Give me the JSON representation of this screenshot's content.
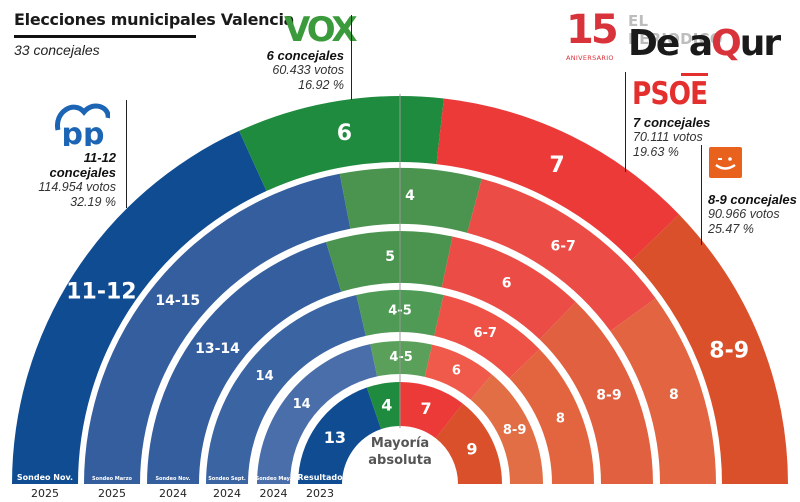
{
  "header": {
    "title": "Elecciones municipales Valencia",
    "subtitle": "33 concejales"
  },
  "brand": {
    "anniversary_number": "15",
    "anniversary_label": "ANIVERSARIO",
    "line1": "EL PERIODICO",
    "line2_a": "De a",
    "line2_q": "Q",
    "line2_b": "ur"
  },
  "parties": {
    "pp": {
      "logo": "PP",
      "seats": "11-12 concejales",
      "votes": "114.954 votos",
      "pct": "32.19 %",
      "color": "#0f4c92"
    },
    "vox": {
      "logo": "VOX",
      "seats": "6 concejales",
      "votes": "60.433 votos",
      "pct": "16.92 %",
      "color": "#1f8b3f"
    },
    "psoe": {
      "logo": "PSOE",
      "seats": "7 concejales",
      "votes": "70.111 votos",
      "pct": "19.63 %",
      "color": "#e8373a"
    },
    "compromis": {
      "logo": "compromis-smile-icon",
      "seats": "8-9 concejales",
      "votes": "90.966 votos",
      "pct": "25.47 %",
      "color": "#e05428"
    }
  },
  "majority": {
    "line1": "Mayoría",
    "line2": "absoluta"
  },
  "chart_data": {
    "type": "hemicycle",
    "title": "Elecciones municipales Valencia",
    "subtitle": "33 concejales",
    "total_seats": 33,
    "majority_line": "Mayoría absoluta",
    "parties": [
      "PP",
      "VOX",
      "PSOE",
      "Compromís"
    ],
    "rings": [
      {
        "name": "Sondeo Nov.",
        "year": "2025",
        "r_in": 322,
        "r_out": 388,
        "font": 22,
        "segments": [
          {
            "party": "PP",
            "label": "11-12",
            "seats_low": 11,
            "seats_high": 12,
            "a0": 0,
            "a1": 65.5,
            "color": "#0f4c92"
          },
          {
            "party": "VOX",
            "label": "6",
            "seats_low": 6,
            "seats_high": 6,
            "a0": 65.5,
            "a1": 96.5,
            "color": "#1f8b3f"
          },
          {
            "party": "PSOE",
            "label": "7",
            "seats_low": 7,
            "seats_high": 7,
            "a0": 96.5,
            "a1": 136,
            "color": "#ec3a38"
          },
          {
            "party": "Compromís",
            "label": "8-9",
            "seats_low": 8,
            "seats_high": 9,
            "a0": 136,
            "a1": 180,
            "color": "#d9502b"
          }
        ]
      },
      {
        "name": "Sondeo Marzo",
        "year": "2025",
        "r_in": 260,
        "r_out": 316,
        "font": 14,
        "segments": [
          {
            "party": "PP",
            "label": "14-15",
            "seats_low": 14,
            "seats_high": 15,
            "a0": 0,
            "a1": 79,
            "color": "#345e9e"
          },
          {
            "party": "VOX",
            "label": "4",
            "seats_low": 4,
            "seats_high": 4,
            "a0": 79,
            "a1": 105,
            "color": "#4b9450"
          },
          {
            "party": "PSOE",
            "label": "6-7",
            "seats_low": 6,
            "seats_high": 7,
            "a0": 105,
            "a1": 144,
            "color": "#ec4c46"
          },
          {
            "party": "Compromís",
            "label": "8",
            "seats_low": 8,
            "seats_high": 8,
            "a0": 144,
            "a1": 180,
            "color": "#e26440"
          }
        ]
      },
      {
        "name": "Sondeo Nov.",
        "year": "2024",
        "r_in": 201,
        "r_out": 253,
        "font": 14,
        "segments": [
          {
            "party": "PP",
            "label": "13-14",
            "seats_low": 13,
            "seats_high": 14,
            "a0": 0,
            "a1": 73,
            "color": "#345e9e"
          },
          {
            "party": "VOX",
            "label": "5",
            "seats_low": 5,
            "seats_high": 5,
            "a0": 73,
            "a1": 102,
            "color": "#4b9450"
          },
          {
            "party": "PSOE",
            "label": "6",
            "seats_low": 6,
            "seats_high": 6,
            "a0": 102,
            "a1": 134,
            "color": "#ec4c46"
          },
          {
            "party": "Compromís",
            "label": "8-9",
            "seats_low": 8,
            "seats_high": 9,
            "a0": 134,
            "a1": 180,
            "color": "#e0603f"
          }
        ]
      },
      {
        "name": "Sondeo Sept.",
        "year": "2024",
        "r_in": 152,
        "r_out": 194,
        "font": 13,
        "segments": [
          {
            "party": "PP",
            "label": "14",
            "seats_low": 14,
            "seats_high": 14,
            "a0": 0,
            "a1": 77,
            "color": "#3a64a2"
          },
          {
            "party": "VOX",
            "label": "4-5",
            "seats_low": 4,
            "seats_high": 5,
            "a0": 77,
            "a1": 103,
            "color": "#4f9a55"
          },
          {
            "party": "PSOE",
            "label": "6-7",
            "seats_low": 6,
            "seats_high": 7,
            "a0": 103,
            "a1": 136,
            "color": "#ee5247"
          },
          {
            "party": "Compromís",
            "label": "8",
            "seats_low": 8,
            "seats_high": 8,
            "a0": 136,
            "a1": 180,
            "color": "#e2653f"
          }
        ]
      },
      {
        "name": "Sondeo May.",
        "year": "2024",
        "r_in": 110,
        "r_out": 143,
        "font": 13,
        "segments": [
          {
            "party": "PP",
            "label": "14",
            "seats_low": 14,
            "seats_high": 14,
            "a0": 0,
            "a1": 78,
            "color": "#4a6eaa"
          },
          {
            "party": "VOX",
            "label": "4-5",
            "seats_low": 4,
            "seats_high": 5,
            "a0": 78,
            "a1": 103,
            "color": "#5aa05a"
          },
          {
            "party": "PSOE",
            "label": "6",
            "seats_low": 6,
            "seats_high": 6,
            "a0": 103,
            "a1": 130,
            "color": "#ef5a4a"
          },
          {
            "party": "Compromís",
            "label": "8-9",
            "seats_low": 8,
            "seats_high": 9,
            "a0": 130,
            "a1": 180,
            "color": "#e26e45"
          }
        ]
      },
      {
        "name": "Resultado",
        "year": "2023",
        "r_in": 58,
        "r_out": 102,
        "font": 16,
        "segments": [
          {
            "party": "PP",
            "label": "13",
            "seats_low": 13,
            "seats_high": 13,
            "a0": 0,
            "a1": 71,
            "color": "#0f4c92"
          },
          {
            "party": "VOX",
            "label": "4",
            "seats_low": 4,
            "seats_high": 4,
            "a0": 71,
            "a1": 90,
            "color": "#1f8b3f"
          },
          {
            "party": "PSOE",
            "label": "7",
            "seats_low": 7,
            "seats_high": 7,
            "a0": 90,
            "a1": 128,
            "color": "#ec3a38"
          },
          {
            "party": "Compromís",
            "label": "9",
            "seats_low": 9,
            "seats_high": 9,
            "a0": 128,
            "a1": 180,
            "color": "#d9502b"
          }
        ]
      }
    ]
  }
}
